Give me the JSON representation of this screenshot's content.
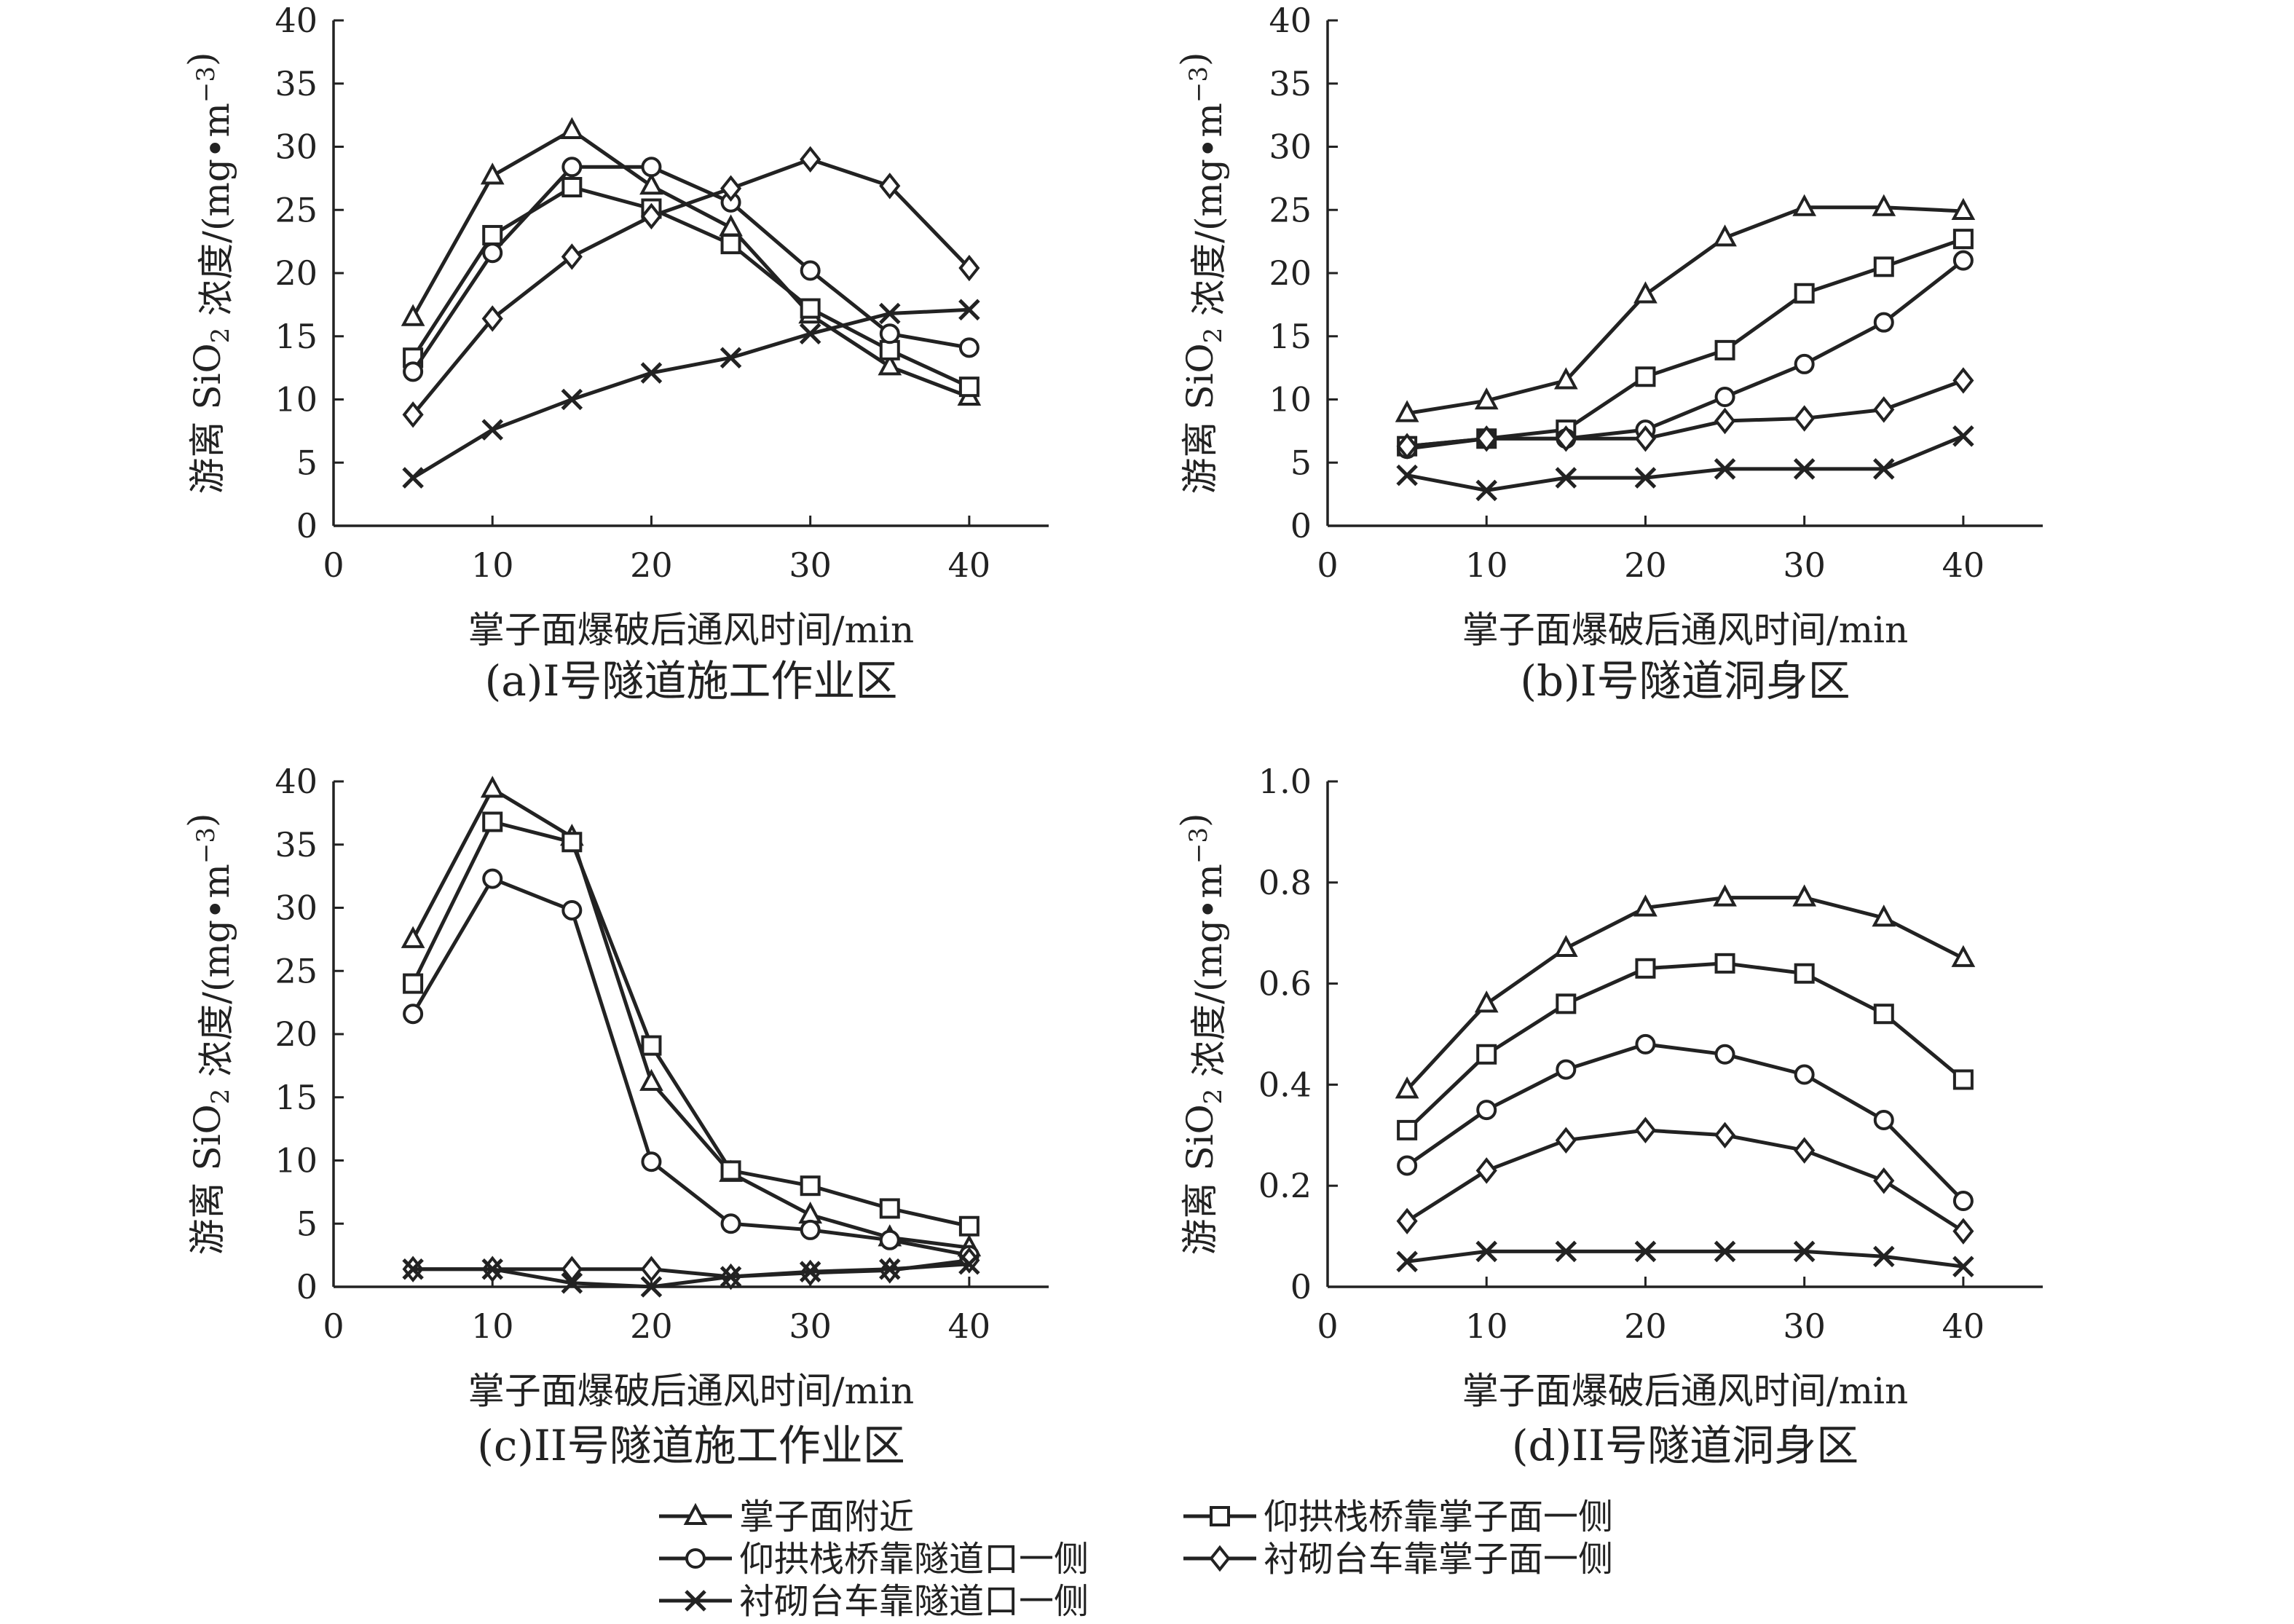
{
  "chart_data": [
    {
      "id": "a",
      "type": "line",
      "title": "(a)I号隧道施工作业区",
      "xlabel": "掌子面爆破后通风时间/min",
      "ylabel": "游离 SiO2 浓度/(mg•m−3)",
      "xlim": [
        0,
        45
      ],
      "xticks": [
        "0",
        "10",
        "20",
        "30",
        "40"
      ],
      "ylim": [
        0,
        40
      ],
      "yticks": [
        "0",
        "5",
        "10",
        "15",
        "20",
        "25",
        "30",
        "35",
        "40"
      ],
      "x": [
        5,
        10,
        15,
        20,
        25,
        30,
        35,
        40
      ],
      "series": [
        {
          "name": "掌子面附近",
          "marker": "triangle",
          "values": [
            16.5,
            27.7,
            31.3,
            26.9,
            23.6,
            16.7,
            12.6,
            10.2
          ]
        },
        {
          "name": "仰拱栈桥靠掌子面一侧",
          "marker": "square",
          "values": [
            13.3,
            23.0,
            26.8,
            25.1,
            22.3,
            17.2,
            13.9,
            11.0
          ]
        },
        {
          "name": "仰拱栈桥靠隧道口一侧",
          "marker": "circle",
          "values": [
            12.2,
            21.6,
            28.4,
            28.4,
            25.6,
            20.2,
            15.2,
            14.1
          ]
        },
        {
          "name": "衬砌台车靠掌子面一侧",
          "marker": "diamond",
          "values": [
            8.8,
            16.4,
            21.3,
            24.5,
            26.7,
            29.0,
            26.9,
            20.4
          ]
        },
        {
          "name": "衬砌台车靠隧道口一侧",
          "marker": "cross",
          "values": [
            3.8,
            7.6,
            10.0,
            12.1,
            13.3,
            15.2,
            16.8,
            17.1
          ]
        }
      ]
    },
    {
      "id": "b",
      "type": "line",
      "title": "(b)I号隧道洞身区",
      "xlabel": "掌子面爆破后通风时间/min",
      "ylabel": "游离 SiO2 浓度/(mg•m−3)",
      "xlim": [
        0,
        45
      ],
      "xticks": [
        "0",
        "10",
        "20",
        "30",
        "40"
      ],
      "ylim": [
        0,
        40
      ],
      "yticks": [
        "0",
        "5",
        "10",
        "15",
        "20",
        "25",
        "30",
        "35",
        "40"
      ],
      "x": [
        5,
        10,
        15,
        20,
        25,
        30,
        35,
        40
      ],
      "series": [
        {
          "name": "掌子面附近",
          "marker": "triangle",
          "values": [
            8.9,
            9.9,
            11.5,
            18.3,
            22.8,
            25.2,
            25.2,
            24.9
          ]
        },
        {
          "name": "仰拱栈桥靠掌子面一侧",
          "marker": "square",
          "values": [
            6.3,
            6.9,
            7.6,
            11.8,
            13.9,
            18.4,
            20.5,
            22.7
          ]
        },
        {
          "name": "仰拱栈桥靠隧道口一侧",
          "marker": "circle",
          "values": [
            6.1,
            6.9,
            6.9,
            7.6,
            10.2,
            12.8,
            16.1,
            21.0
          ]
        },
        {
          "name": "衬砌台车靠掌子面一侧",
          "marker": "diamond",
          "values": [
            6.3,
            6.9,
            6.9,
            6.9,
            8.3,
            8.5,
            9.2,
            11.5
          ]
        },
        {
          "name": "衬砌台车靠隧道口一侧",
          "marker": "cross",
          "values": [
            4.0,
            2.8,
            3.8,
            3.8,
            4.5,
            4.5,
            4.5,
            7.1
          ]
        }
      ]
    },
    {
      "id": "c",
      "type": "line",
      "title": "(c)II号隧道施工作业区",
      "xlabel": "掌子面爆破后通风时间/min",
      "ylabel": "游离 SiO2 浓度/(mg•m−3)",
      "xlim": [
        0,
        45
      ],
      "xticks": [
        "0",
        "10",
        "20",
        "30",
        "40"
      ],
      "ylim": [
        0,
        40
      ],
      "yticks": [
        "0",
        "5",
        "10",
        "15",
        "20",
        "25",
        "30",
        "35",
        "40"
      ],
      "x": [
        5,
        10,
        15,
        20,
        25,
        30,
        35,
        40
      ],
      "series": [
        {
          "name": "掌子面附近",
          "marker": "triangle",
          "values": [
            27.5,
            39.4,
            35.6,
            16.2,
            9.0,
            5.7,
            3.9,
            3.1
          ]
        },
        {
          "name": "仰拱栈桥靠掌子面一侧",
          "marker": "square",
          "values": [
            24.0,
            36.8,
            35.2,
            19.1,
            9.2,
            8.0,
            6.2,
            4.8
          ]
        },
        {
          "name": "仰拱栈桥靠隧道口一侧",
          "marker": "circle",
          "values": [
            21.6,
            32.3,
            29.8,
            9.9,
            5.0,
            4.5,
            3.7,
            2.5
          ]
        },
        {
          "name": "衬砌台车靠掌子面一侧",
          "marker": "diamond",
          "values": [
            1.4,
            1.4,
            1.4,
            1.4,
            0.8,
            1.1,
            1.3,
            2.1
          ]
        },
        {
          "name": "衬砌台车靠隧道口一侧",
          "marker": "cross",
          "values": [
            1.4,
            1.4,
            0.3,
            0.0,
            0.8,
            1.2,
            1.4,
            1.8
          ]
        }
      ]
    },
    {
      "id": "d",
      "type": "line",
      "title": "(d)II号隧道洞身区",
      "xlabel": "掌子面爆破后通风时间/min",
      "ylabel": "游离 SiO2 浓度/(mg•m−3)",
      "xlim": [
        0,
        45
      ],
      "xticks": [
        "0",
        "10",
        "20",
        "30",
        "40"
      ],
      "ylim": [
        0,
        1.0
      ],
      "yticks": [
        "0",
        "0.2",
        "0.4",
        "0.6",
        "0.8",
        "1.0"
      ],
      "x": [
        5,
        10,
        15,
        20,
        25,
        30,
        35,
        40
      ],
      "series": [
        {
          "name": "掌子面附近",
          "marker": "triangle",
          "values": [
            0.39,
            0.56,
            0.67,
            0.75,
            0.77,
            0.77,
            0.73,
            0.65
          ]
        },
        {
          "name": "仰拱栈桥靠掌子面一侧",
          "marker": "square",
          "values": [
            0.31,
            0.46,
            0.56,
            0.63,
            0.64,
            0.62,
            0.54,
            0.41
          ]
        },
        {
          "name": "仰拱栈桥靠隧道口一侧",
          "marker": "circle",
          "values": [
            0.24,
            0.35,
            0.43,
            0.48,
            0.46,
            0.42,
            0.33,
            0.17
          ]
        },
        {
          "name": "衬砌台车靠掌子面一侧",
          "marker": "diamond",
          "values": [
            0.13,
            0.23,
            0.29,
            0.31,
            0.3,
            0.27,
            0.21,
            0.11
          ]
        },
        {
          "name": "衬砌台车靠隧道口一侧",
          "marker": "cross",
          "values": [
            0.05,
            0.07,
            0.07,
            0.07,
            0.07,
            0.07,
            0.06,
            0.04
          ]
        }
      ]
    }
  ],
  "legend": {
    "placement": "bottom",
    "entries": [
      {
        "label": "掌子面附近",
        "marker": "triangle"
      },
      {
        "label": "仰拱栈桥靠掌子面一侧",
        "marker": "square"
      },
      {
        "label": "仰拱栈桥靠隧道口一侧",
        "marker": "circle"
      },
      {
        "label": "衬砌台车靠掌子面一侧",
        "marker": "diamond"
      },
      {
        "label": "衬砌台车靠隧道口一侧",
        "marker": "cross"
      }
    ]
  },
  "colors": {
    "line": "#222222",
    "marker_fill": "#ffffff"
  }
}
